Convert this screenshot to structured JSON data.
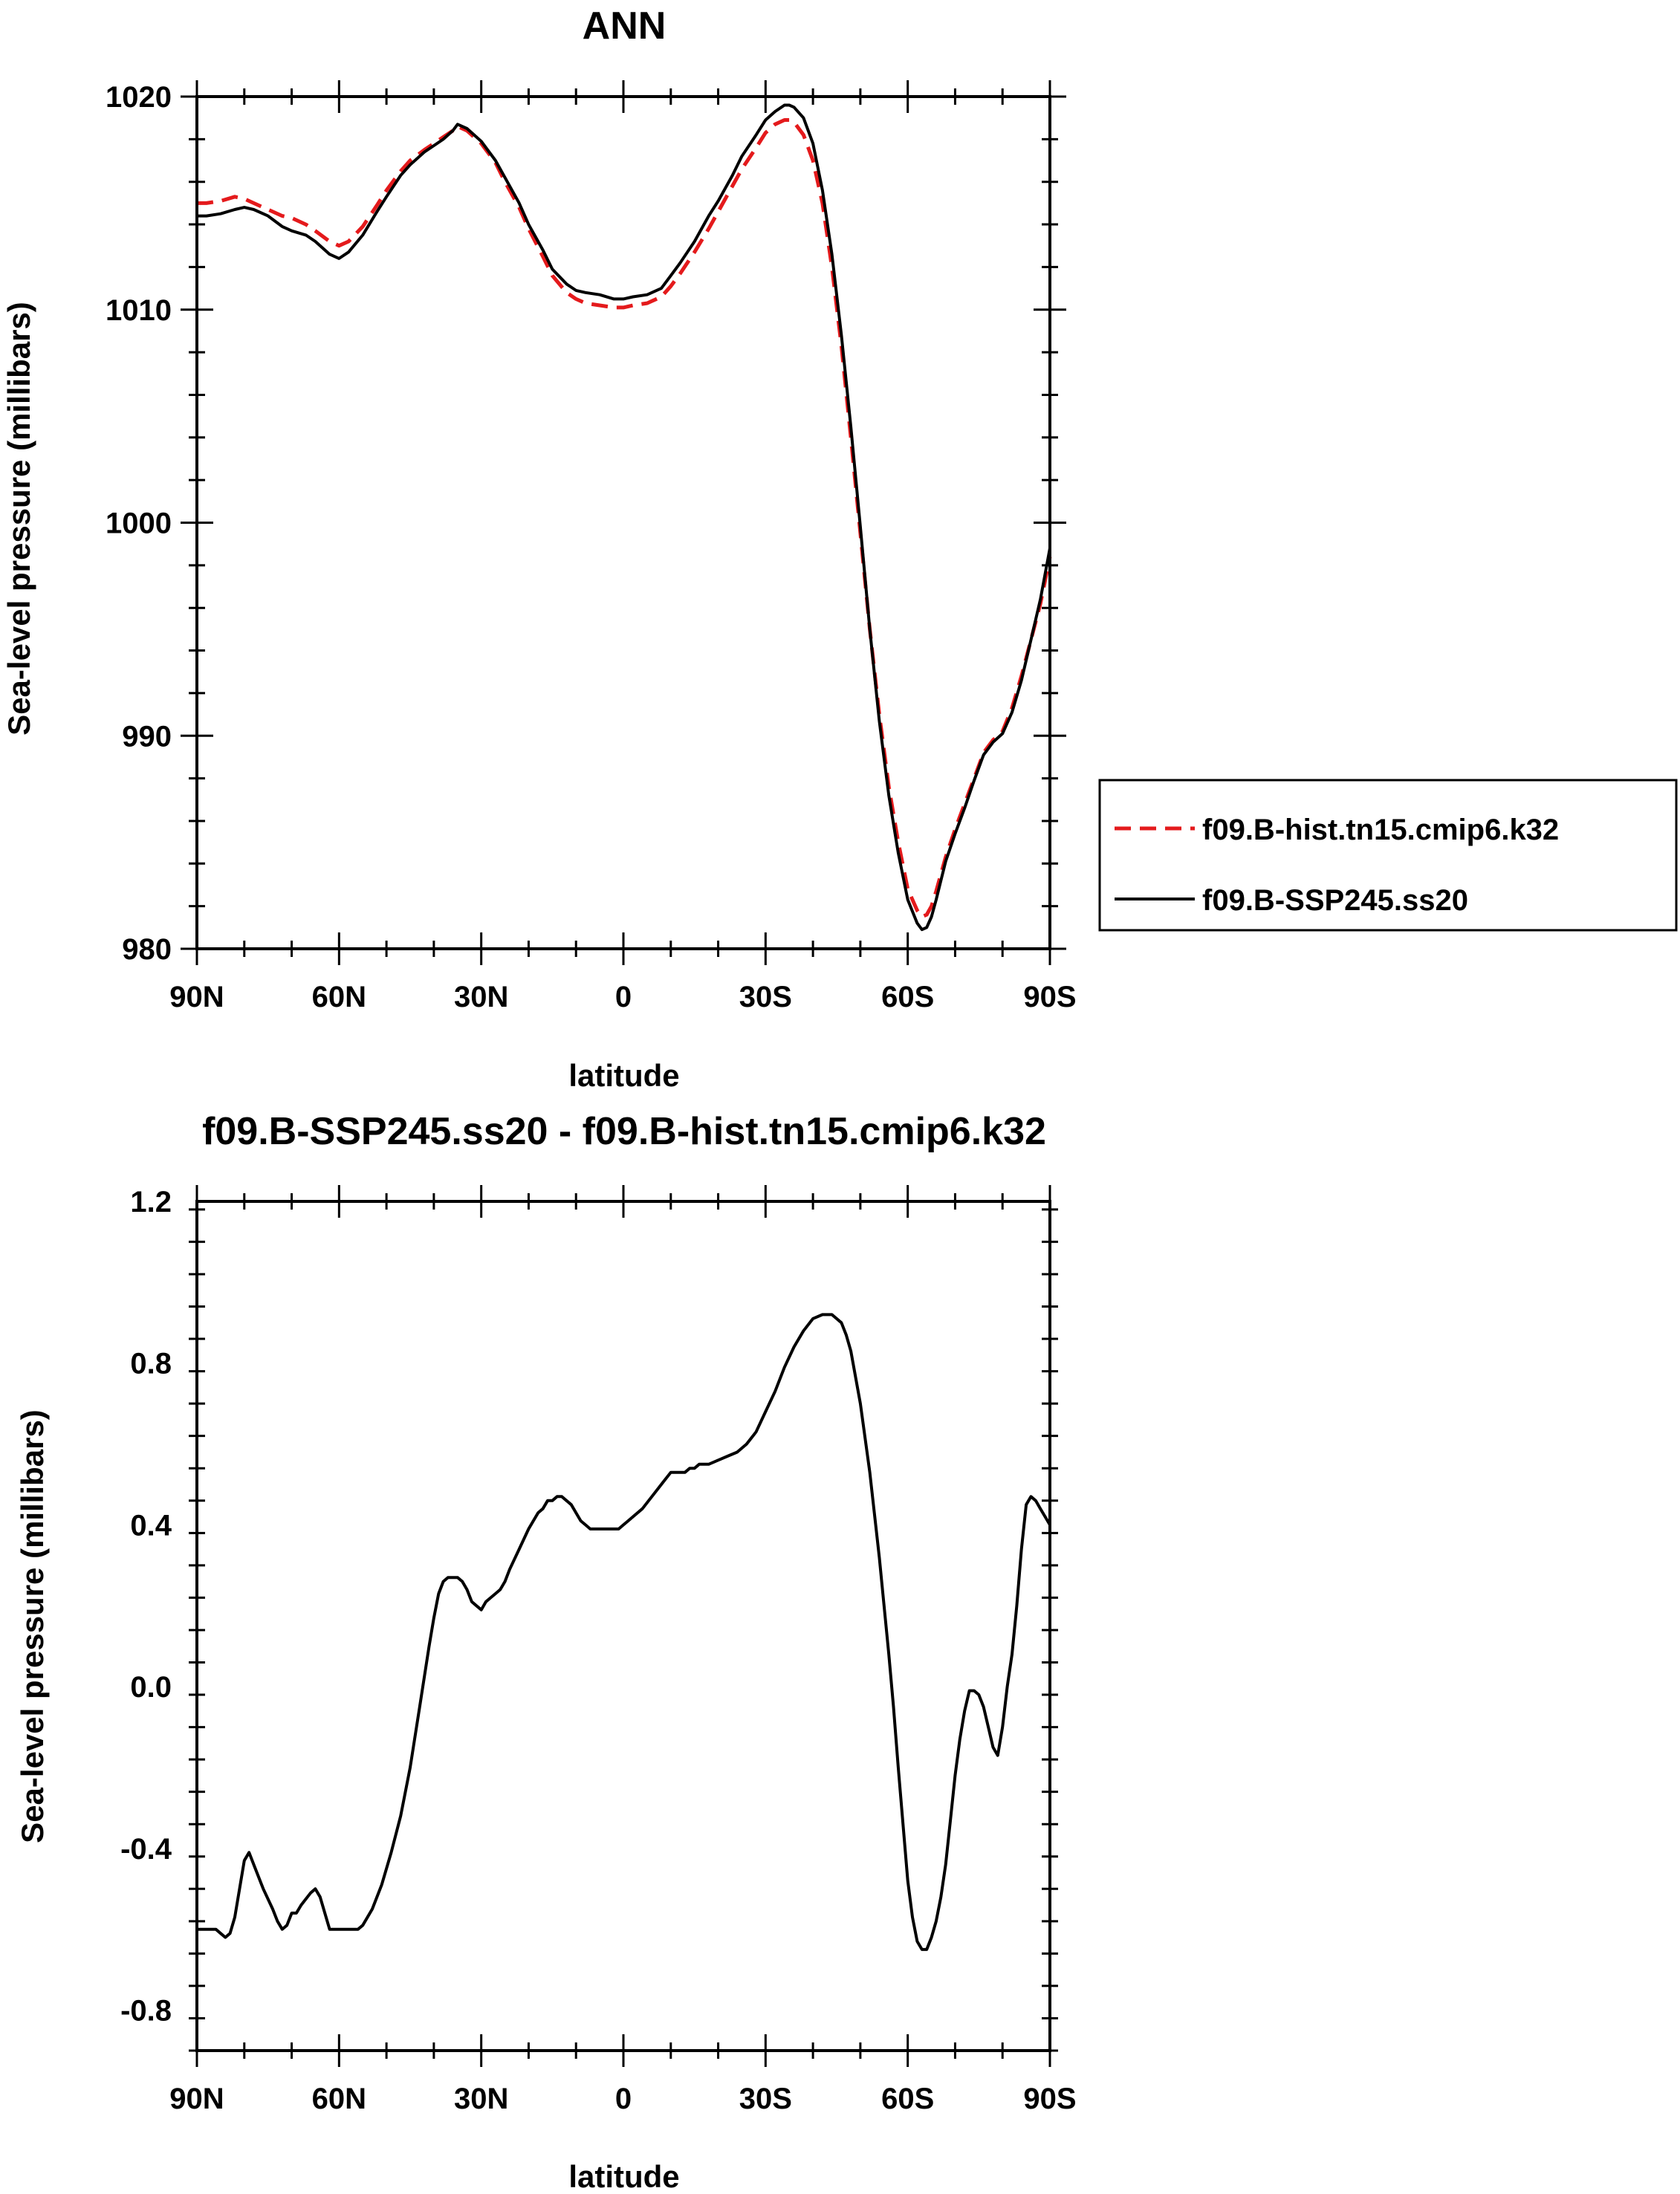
{
  "chart_data": [
    {
      "type": "line",
      "title": "ANN",
      "xlabel": "latitude",
      "ylabel": "Sea-level pressure (millibars)",
      "xlim": [
        90,
        -90
      ],
      "ylim": [
        980,
        1020
      ],
      "xticks": [
        {
          "value": 90,
          "label": "90N"
        },
        {
          "value": 60,
          "label": "60N"
        },
        {
          "value": 30,
          "label": "30N"
        },
        {
          "value": 0,
          "label": "0"
        },
        {
          "value": -30,
          "label": "30S"
        },
        {
          "value": -60,
          "label": "60S"
        },
        {
          "value": -90,
          "label": "90S"
        }
      ],
      "yticks": [
        {
          "value": 980,
          "label": "980"
        },
        {
          "value": 990,
          "label": "990"
        },
        {
          "value": 1000,
          "label": "1000"
        },
        {
          "value": 1010,
          "label": "1010"
        },
        {
          "value": 1020,
          "label": "1020"
        }
      ],
      "legend": "right",
      "series": [
        {
          "name": "f09.B-hist.tn15.cmip6.k32",
          "color": "#e41a1c",
          "dash": "dashed",
          "x": [
            90,
            88,
            85,
            82,
            80,
            78,
            75,
            72,
            70,
            67,
            65,
            62,
            60,
            58,
            55,
            52,
            50,
            47,
            45,
            42,
            40,
            38,
            36,
            35,
            33,
            30,
            27,
            25,
            22,
            20,
            17,
            15,
            12,
            10,
            8,
            5,
            2,
            0,
            -2,
            -5,
            -8,
            -10,
            -12,
            -15,
            -18,
            -20,
            -23,
            -25,
            -28,
            -30,
            -32,
            -34,
            -35,
            -36,
            -38,
            -40,
            -42,
            -44,
            -46,
            -48,
            -50,
            -52,
            -54,
            -56,
            -58,
            -60,
            -62,
            -63,
            -64,
            -65,
            -66,
            -67,
            -68,
            -70,
            -72,
            -74,
            -76,
            -78,
            -80,
            -82,
            -84,
            -86,
            -88,
            -90
          ],
          "y": [
            1015.0,
            1015.0,
            1015.1,
            1015.3,
            1015.2,
            1015.0,
            1014.7,
            1014.4,
            1014.3,
            1014.0,
            1013.7,
            1013.2,
            1013.0,
            1013.2,
            1013.9,
            1014.9,
            1015.6,
            1016.5,
            1017.0,
            1017.5,
            1017.8,
            1018.1,
            1018.4,
            1018.6,
            1018.4,
            1017.8,
            1016.9,
            1016.0,
            1014.8,
            1013.8,
            1012.5,
            1011.6,
            1010.8,
            1010.5,
            1010.3,
            1010.2,
            1010.1,
            1010.1,
            1010.2,
            1010.3,
            1010.6,
            1011.1,
            1011.7,
            1012.7,
            1013.8,
            1014.6,
            1015.8,
            1016.6,
            1017.6,
            1018.3,
            1018.7,
            1018.9,
            1018.9,
            1018.8,
            1018.2,
            1017.0,
            1015.0,
            1012.0,
            1008.3,
            1004.0,
            999.5,
            995.0,
            991.0,
            987.6,
            985.0,
            982.8,
            981.8,
            981.5,
            981.6,
            982.0,
            982.7,
            983.5,
            984.3,
            985.6,
            986.8,
            988.0,
            989.2,
            989.8,
            990.2,
            991.3,
            992.8,
            994.5,
            996.2,
            998.4
          ]
        },
        {
          "name": "f09.B-SSP245.ss20",
          "color": "#000000",
          "dash": "solid",
          "x": [
            90,
            88,
            85,
            82,
            80,
            78,
            75,
            72,
            70,
            67,
            65,
            62,
            60,
            58,
            55,
            52,
            50,
            47,
            45,
            42,
            40,
            38,
            36,
            35,
            33,
            30,
            27,
            25,
            22,
            20,
            17,
            15,
            12,
            10,
            8,
            5,
            2,
            0,
            -2,
            -5,
            -8,
            -10,
            -12,
            -15,
            -18,
            -20,
            -23,
            -25,
            -28,
            -30,
            -32,
            -34,
            -35,
            -36,
            -38,
            -40,
            -42,
            -44,
            -46,
            -48,
            -50,
            -52,
            -54,
            -56,
            -58,
            -60,
            -62,
            -63,
            -64,
            -65,
            -66,
            -67,
            -68,
            -70,
            -72,
            -74,
            -76,
            -78,
            -80,
            -82,
            -84,
            -86,
            -88,
            -90
          ],
          "y": [
            1014.4,
            1014.4,
            1014.5,
            1014.7,
            1014.8,
            1014.7,
            1014.4,
            1013.9,
            1013.7,
            1013.5,
            1013.2,
            1012.6,
            1012.4,
            1012.7,
            1013.5,
            1014.6,
            1015.3,
            1016.3,
            1016.8,
            1017.4,
            1017.7,
            1018.0,
            1018.4,
            1018.7,
            1018.5,
            1017.9,
            1017.0,
            1016.2,
            1015.0,
            1014.0,
            1012.8,
            1011.9,
            1011.2,
            1010.9,
            1010.8,
            1010.7,
            1010.5,
            1010.5,
            1010.6,
            1010.7,
            1011.0,
            1011.6,
            1012.2,
            1013.2,
            1014.4,
            1015.1,
            1016.3,
            1017.2,
            1018.2,
            1018.9,
            1019.3,
            1019.6,
            1019.6,
            1019.5,
            1019.0,
            1017.8,
            1015.6,
            1012.6,
            1008.8,
            1004.5,
            999.8,
            995.0,
            990.7,
            987.2,
            984.5,
            982.3,
            981.2,
            980.9,
            981.0,
            981.5,
            982.3,
            983.2,
            984.1,
            985.4,
            986.6,
            987.9,
            989.1,
            989.7,
            990.1,
            991.1,
            992.6,
            994.5,
            996.4,
            998.8
          ]
        }
      ]
    },
    {
      "type": "line",
      "title": "f09.B-SSP245.ss20 - f09.B-hist.tn15.cmip6.k32",
      "xlabel": "latitude",
      "ylabel": "Sea-level pressure (millibars)",
      "xlim": [
        90,
        -90
      ],
      "ylim": [
        -0.9,
        1.2
      ],
      "xticks": [
        {
          "value": 90,
          "label": "90N"
        },
        {
          "value": 60,
          "label": "60N"
        },
        {
          "value": 30,
          "label": "30N"
        },
        {
          "value": 0,
          "label": "0"
        },
        {
          "value": -30,
          "label": "30S"
        },
        {
          "value": -60,
          "label": "60S"
        },
        {
          "value": -90,
          "label": "90S"
        }
      ],
      "yticks": [
        {
          "value": -0.8,
          "label": "-0.8"
        },
        {
          "value": -0.4,
          "label": "-0.4"
        },
        {
          "value": 0.0,
          "label": "0.0"
        },
        {
          "value": 0.4,
          "label": "0.4"
        },
        {
          "value": 0.8,
          "label": "0.8"
        },
        {
          "value": 1.2,
          "label": "1.2"
        }
      ],
      "series": [
        {
          "color": "#000000",
          "dash": "solid",
          "x": [
            90,
            87,
            86,
            85,
            84,
            83,
            82,
            81,
            80,
            79,
            78,
            76,
            74,
            73,
            72,
            71,
            70,
            69,
            68,
            66,
            65,
            64,
            63,
            62,
            61,
            60,
            58,
            56,
            55,
            53,
            51,
            49,
            47,
            45,
            43,
            41,
            40,
            39,
            38,
            37,
            36,
            35,
            34,
            33,
            32,
            31,
            30,
            29,
            28,
            27,
            26,
            25,
            24,
            22,
            20,
            19,
            18,
            17,
            16,
            15,
            14,
            13,
            12,
            11,
            10,
            9,
            8,
            7,
            6,
            5,
            4,
            3,
            2,
            1,
            0,
            -1,
            -2,
            -4,
            -6,
            -8,
            -10,
            -12,
            -13,
            -14,
            -15,
            -16,
            -18,
            -20,
            -22,
            -24,
            -26,
            -28,
            -30,
            -32,
            -34,
            -36,
            -38,
            -40,
            -42,
            -44,
            -46,
            -47,
            -48,
            -50,
            -52,
            -54,
            -56,
            -57,
            -58,
            -60,
            -61,
            -62,
            -63,
            -64,
            -65,
            -66,
            -67,
            -68,
            -69,
            -70,
            -71,
            -72,
            -73,
            -74,
            -75,
            -76,
            -77,
            -78,
            -79,
            -80,
            -81,
            -82,
            -83,
            -84,
            -85,
            -86,
            -87,
            -88,
            -89,
            -90
          ],
          "y": [
            -0.6,
            -0.6,
            -0.6,
            -0.61,
            -0.62,
            -0.61,
            -0.57,
            -0.5,
            -0.43,
            -0.41,
            -0.44,
            -0.5,
            -0.55,
            -0.58,
            -0.6,
            -0.59,
            -0.56,
            -0.56,
            -0.54,
            -0.51,
            -0.5,
            -0.52,
            -0.56,
            -0.6,
            -0.6,
            -0.6,
            -0.6,
            -0.6,
            -0.59,
            -0.55,
            -0.49,
            -0.41,
            -0.32,
            -0.2,
            -0.05,
            0.1,
            0.17,
            0.23,
            0.26,
            0.27,
            0.27,
            0.27,
            0.26,
            0.24,
            0.21,
            0.2,
            0.19,
            0.21,
            0.22,
            0.23,
            0.24,
            0.26,
            0.29,
            0.34,
            0.39,
            0.41,
            0.43,
            0.44,
            0.46,
            0.46,
            0.47,
            0.47,
            0.46,
            0.45,
            0.43,
            0.41,
            0.4,
            0.39,
            0.39,
            0.39,
            0.39,
            0.39,
            0.39,
            0.39,
            0.4,
            0.41,
            0.42,
            0.44,
            0.47,
            0.5,
            0.53,
            0.53,
            0.53,
            0.54,
            0.54,
            0.55,
            0.55,
            0.56,
            0.57,
            0.58,
            0.6,
            0.63,
            0.68,
            0.73,
            0.79,
            0.84,
            0.88,
            0.91,
            0.92,
            0.92,
            0.9,
            0.87,
            0.83,
            0.7,
            0.53,
            0.32,
            0.08,
            -0.05,
            -0.2,
            -0.48,
            -0.57,
            -0.63,
            -0.65,
            -0.65,
            -0.62,
            -0.58,
            -0.52,
            -0.44,
            -0.33,
            -0.22,
            -0.13,
            -0.06,
            -0.01,
            -0.01,
            -0.02,
            -0.05,
            -0.1,
            -0.15,
            -0.17,
            -0.1,
            0.0,
            0.08,
            0.2,
            0.34,
            0.45,
            0.47,
            0.46,
            0.44,
            0.42,
            0.4
          ]
        }
      ]
    }
  ]
}
